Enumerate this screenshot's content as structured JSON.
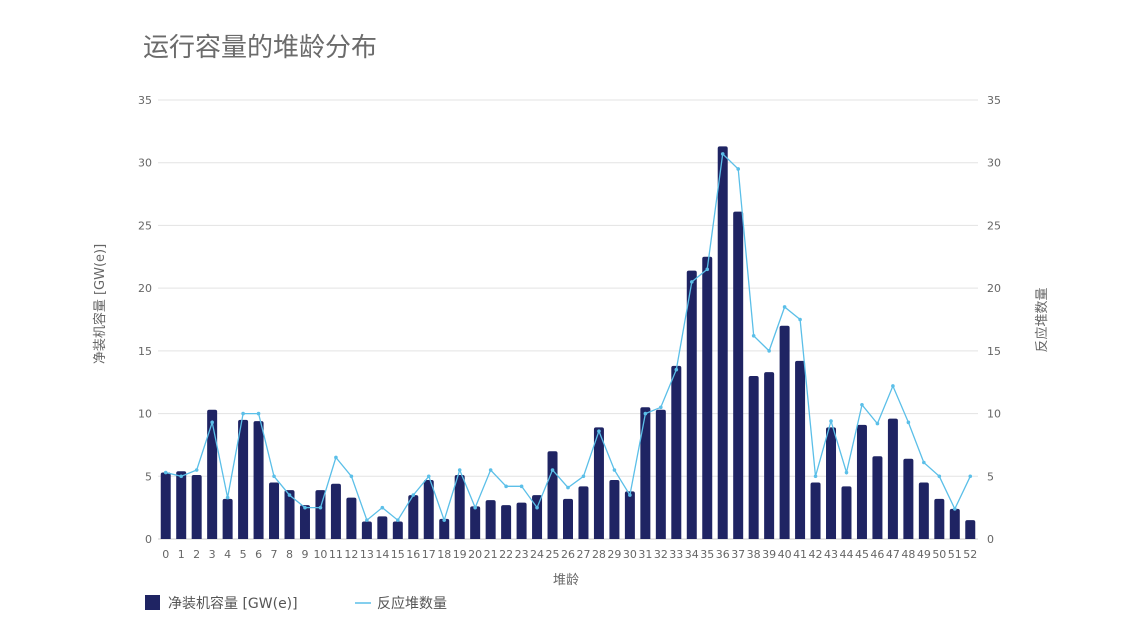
{
  "chart_data": {
    "type": "bar",
    "title": "运行容量的堆龄分布",
    "xlabel": "堆龄",
    "ylabel_left": "净装机容量 [GW(e)]",
    "ylabel_right": "反应堆数量",
    "ylim": [
      0,
      35
    ],
    "y2lim": [
      0,
      35
    ],
    "yticks": [
      "0",
      "5",
      "10",
      "15",
      "20",
      "25",
      "30",
      "35"
    ],
    "grid": true,
    "legend_position": "bottom-left",
    "categories": [
      "0",
      "1",
      "2",
      "3",
      "4",
      "5",
      "6",
      "7",
      "8",
      "9",
      "10",
      "11",
      "12",
      "13",
      "14",
      "15",
      "16",
      "17",
      "18",
      "19",
      "20",
      "21",
      "22",
      "23",
      "24",
      "25",
      "26",
      "27",
      "28",
      "29",
      "30",
      "31",
      "32",
      "33",
      "34",
      "35",
      "36",
      "37",
      "38",
      "39",
      "40",
      "41",
      "42",
      "43",
      "44",
      "45",
      "46",
      "47",
      "48",
      "49",
      "50",
      "51",
      "52"
    ],
    "series": [
      {
        "name": "净装机容量 [GW(e)]",
        "type": "bar",
        "axis": "left",
        "color": "#1f2463",
        "values": [
          5.3,
          5.4,
          5.1,
          10.3,
          3.2,
          9.5,
          9.4,
          4.5,
          3.9,
          2.7,
          3.9,
          4.4,
          3.3,
          1.4,
          1.8,
          1.4,
          3.5,
          4.7,
          1.6,
          5.1,
          2.6,
          3.1,
          2.7,
          2.9,
          3.5,
          7.0,
          3.2,
          4.2,
          8.9,
          4.7,
          3.8,
          10.5,
          10.3,
          13.8,
          21.4,
          22.5,
          31.3,
          26.1,
          13.0,
          13.3,
          17.0,
          14.2,
          4.5,
          8.9,
          4.2,
          9.1,
          6.6,
          9.6,
          6.4,
          4.5,
          3.2,
          2.4,
          1.5
        ]
      },
      {
        "name": "反应堆数量",
        "type": "line",
        "axis": "right",
        "color": "#5bbfe8",
        "values": [
          5.3,
          5.0,
          5.5,
          9.3,
          3.3,
          10.0,
          10.0,
          5.0,
          3.5,
          2.5,
          2.5,
          6.5,
          5.0,
          1.5,
          2.5,
          1.5,
          3.5,
          5.0,
          1.5,
          5.5,
          2.5,
          5.5,
          4.2,
          4.2,
          2.5,
          5.5,
          4.1,
          5.0,
          8.6,
          5.5,
          3.5,
          10.0,
          10.5,
          13.5,
          20.5,
          21.5,
          30.7,
          29.5,
          16.2,
          15.0,
          18.5,
          17.5,
          5.0,
          9.4,
          5.3,
          10.7,
          9.2,
          12.2,
          9.3,
          6.1,
          5.0,
          2.4,
          5.0
        ]
      }
    ]
  }
}
